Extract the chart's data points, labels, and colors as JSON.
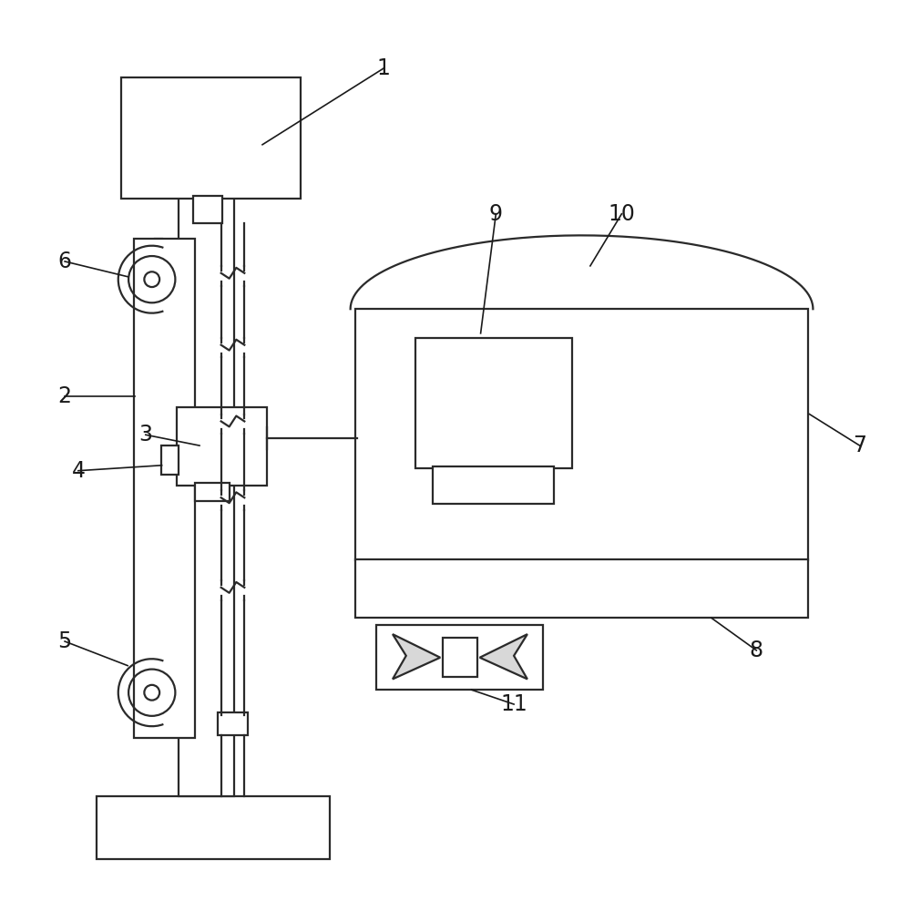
{
  "bg_color": "#ffffff",
  "line_color": "#2a2a2a",
  "lw": 1.6,
  "fig_width": 10.0,
  "fig_height": 9.89,
  "label_fontsize": 17
}
